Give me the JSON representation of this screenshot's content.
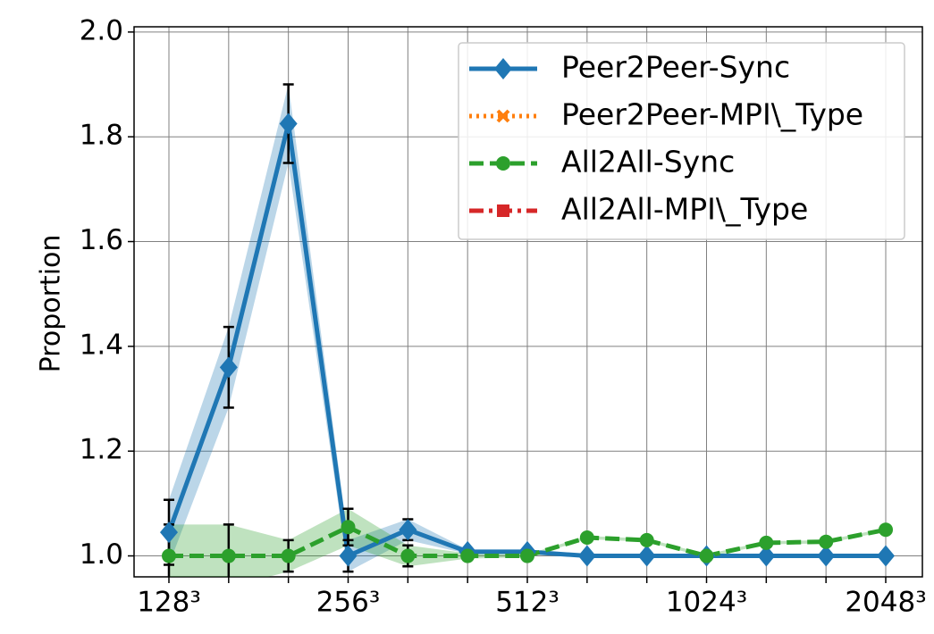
{
  "chart_data": {
    "type": "line",
    "ylabel": "Proportion",
    "categories": [
      "128³",
      null,
      null,
      "256³",
      null,
      null,
      "512³",
      null,
      null,
      "1024³",
      null,
      null,
      "2048³"
    ],
    "series": [
      {
        "name": "Peer2Peer-Sync",
        "color": "#1f77b4",
        "linestyle": "solid",
        "marker": "diamond",
        "values": [
          1.045,
          1.36,
          1.825,
          1.0,
          1.05,
          1.008,
          1.008,
          1.0,
          1.0,
          1.0,
          1.0,
          1.0,
          1.0
        ],
        "errors": [
          0.062,
          0.077,
          0.075,
          0.03,
          0.02,
          0.004,
          0.004,
          0,
          0,
          0,
          0,
          0,
          0
        ]
      },
      {
        "name": "Peer2Peer-MPI\\_Type",
        "color": "#ff7f0e",
        "linestyle": "dotted",
        "marker": "x",
        "values": [
          null,
          null,
          null,
          null,
          null,
          null,
          null,
          null,
          null,
          null,
          null,
          null,
          null
        ]
      },
      {
        "name": "All2All-Sync",
        "color": "#2ca02c",
        "linestyle": "dashed",
        "marker": "circle",
        "values": [
          1.0,
          1.0,
          1.0,
          1.055,
          1.0,
          1.0,
          1.0,
          1.035,
          1.03,
          1.0,
          1.025,
          1.027,
          1.05
        ],
        "errors": [
          0.06,
          0.06,
          0.03,
          0.035,
          0.02,
          0.005,
          0.003,
          0.003,
          0.003,
          0.003,
          0.003,
          0.003,
          0.003
        ]
      },
      {
        "name": "All2All-MPI\\_Type",
        "color": "#d62728",
        "linestyle": "dashdot",
        "marker": "square",
        "values": [
          null,
          null,
          null,
          null,
          null,
          null,
          null,
          null,
          null,
          null,
          null,
          null,
          null
        ]
      }
    ],
    "ylim": [
      0.96,
      2.01
    ],
    "yticks": [
      {
        "value": 1,
        "label": "1.0"
      },
      1.2,
      1.4,
      1.6,
      1.8,
      {
        "value": 2,
        "label": "2.0"
      }
    ],
    "grid": true,
    "legend": "upper right"
  }
}
